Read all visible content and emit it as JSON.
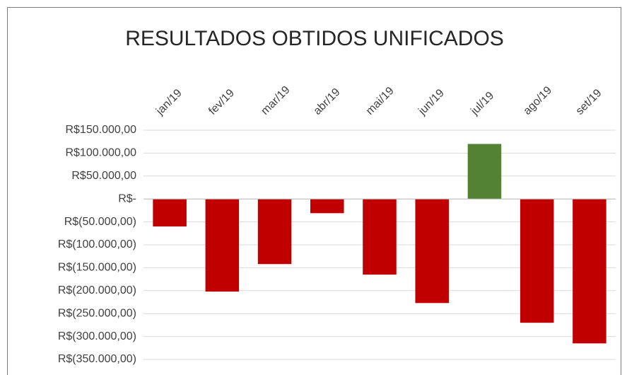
{
  "chart_data": {
    "type": "bar",
    "title": "RESULTADOS OBTIDOS UNIFICADOS",
    "categories": [
      "jan/19",
      "fev/19",
      "mar/19",
      "abr/19",
      "mai/19",
      "jun/19",
      "jul/19",
      "ago/19",
      "set/19"
    ],
    "values": [
      -60000,
      -202000,
      -142000,
      -31000,
      -165000,
      -227000,
      120000,
      -270000,
      -315000
    ],
    "colors": [
      "#c00000",
      "#c00000",
      "#c00000",
      "#c00000",
      "#c00000",
      "#c00000",
      "#548235",
      "#c00000",
      "#c00000"
    ],
    "ylim": [
      -350000,
      150000
    ],
    "yticks": [
      {
        "value": 150000,
        "label": "R$150.000,00"
      },
      {
        "value": 100000,
        "label": "R$100.000,00"
      },
      {
        "value": 50000,
        "label": "R$50.000,00"
      },
      {
        "value": 0,
        "label": "R$-"
      },
      {
        "value": -50000,
        "label": "R$(50.000,00)"
      },
      {
        "value": -100000,
        "label": "R$(100.000,00)"
      },
      {
        "value": -150000,
        "label": "R$(150.000,00)"
      },
      {
        "value": -200000,
        "label": "R$(200.000,00)"
      },
      {
        "value": -250000,
        "label": "R$(250.000,00)"
      },
      {
        "value": -300000,
        "label": "R$(300.000,00)"
      },
      {
        "value": -350000,
        "label": "R$(350.000,00)"
      }
    ],
    "grid": true
  }
}
